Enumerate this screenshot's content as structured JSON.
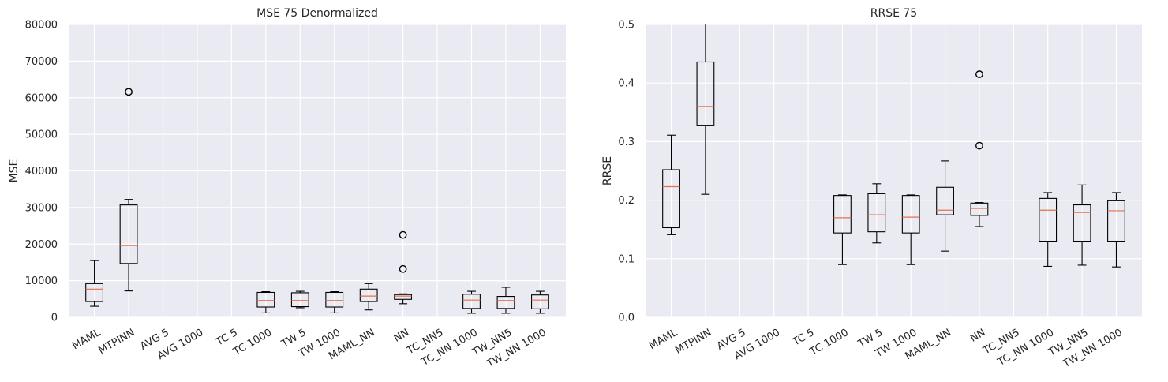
{
  "chart_data": [
    {
      "type": "box",
      "title": "MSE 75 Denormalized",
      "xlabel": "",
      "ylabel": "MSE",
      "ylim": [
        0,
        80000
      ],
      "yticks": [
        0,
        10000,
        20000,
        30000,
        40000,
        50000,
        60000,
        70000,
        80000
      ],
      "categories": [
        "MAML",
        "MTPINN",
        "AVG 5",
        "AVG 1000",
        "TC 5",
        "TC 1000",
        "TW 5",
        "TW 1000",
        "MAML_NN",
        "NN",
        "TC_NN5",
        "TC_NN 1000",
        "TW_NN5",
        "TW_NN 1000"
      ],
      "boxes": [
        {
          "whislo": 3000,
          "q1": 4300,
          "med": 7700,
          "q3": 9200,
          "whishi": 15500,
          "fliers": []
        },
        {
          "whislo": 7200,
          "q1": 14700,
          "med": 19600,
          "q3": 30700,
          "whishi": 32200,
          "fliers": [
            61600
          ]
        },
        null,
        null,
        null,
        {
          "whislo": 1200,
          "q1": 2800,
          "med": 4600,
          "q3": 6800,
          "whishi": 7000,
          "fliers": []
        },
        {
          "whislo": 2600,
          "q1": 2900,
          "med": 4600,
          "q3": 6700,
          "whishi": 7100,
          "fliers": []
        },
        {
          "whislo": 1200,
          "q1": 2800,
          "med": 4600,
          "q3": 6800,
          "whishi": 7000,
          "fliers": []
        },
        {
          "whislo": 2000,
          "q1": 4300,
          "med": 5800,
          "q3": 7700,
          "whishi": 9200,
          "fliers": []
        },
        {
          "whislo": 3700,
          "q1": 4900,
          "med": 5800,
          "q3": 6200,
          "whishi": 6400,
          "fliers": [
            13200,
            22500
          ]
        },
        null,
        {
          "whislo": 1100,
          "q1": 2400,
          "med": 4700,
          "q3": 6300,
          "whishi": 7100,
          "fliers": []
        },
        {
          "whislo": 1100,
          "q1": 2400,
          "med": 4600,
          "q3": 5700,
          "whishi": 8200,
          "fliers": []
        },
        {
          "whislo": 1100,
          "q1": 2300,
          "med": 4700,
          "q3": 6100,
          "whishi": 7100,
          "fliers": []
        }
      ],
      "grid": true,
      "background": "#eaeaf2",
      "box_color": "#000000",
      "median_color": "#e1724b"
    },
    {
      "type": "box",
      "title": "RRSE 75",
      "xlabel": "",
      "ylabel": "RRSE",
      "ylim": [
        0,
        0.5
      ],
      "yticks": [
        0.0,
        0.1,
        0.2,
        0.3,
        0.4,
        0.5
      ],
      "categories": [
        "MAML",
        "MTPINN",
        "AVG 5",
        "AVG 1000",
        "TC 5",
        "TC 1000",
        "TW 5",
        "TW 1000",
        "MAML_NN",
        "NN",
        "TC_NN5",
        "TC_NN 1000",
        "TW_NN5",
        "TW_NN 1000"
      ],
      "boxes": [
        {
          "whislo": 0.141,
          "q1": 0.153,
          "med": 0.223,
          "q3": 0.252,
          "whishi": 0.311,
          "fliers": []
        },
        {
          "whislo": 0.21,
          "q1": 0.327,
          "med": 0.36,
          "q3": 0.436,
          "whishi": 0.52,
          "fliers": []
        },
        null,
        null,
        null,
        {
          "whislo": 0.09,
          "q1": 0.144,
          "med": 0.17,
          "q3": 0.208,
          "whishi": 0.209,
          "fliers": []
        },
        {
          "whislo": 0.127,
          "q1": 0.146,
          "med": 0.175,
          "q3": 0.211,
          "whishi": 0.228,
          "fliers": []
        },
        {
          "whislo": 0.09,
          "q1": 0.144,
          "med": 0.171,
          "q3": 0.208,
          "whishi": 0.209,
          "fliers": []
        },
        {
          "whislo": 0.113,
          "q1": 0.175,
          "med": 0.183,
          "q3": 0.222,
          "whishi": 0.267,
          "fliers": []
        },
        {
          "whislo": 0.155,
          "q1": 0.174,
          "med": 0.186,
          "q3": 0.195,
          "whishi": 0.196,
          "fliers": [
            0.293,
            0.415
          ]
        },
        null,
        {
          "whislo": 0.087,
          "q1": 0.13,
          "med": 0.183,
          "q3": 0.203,
          "whishi": 0.213,
          "fliers": []
        },
        {
          "whislo": 0.089,
          "q1": 0.13,
          "med": 0.179,
          "q3": 0.192,
          "whishi": 0.226,
          "fliers": []
        },
        {
          "whislo": 0.086,
          "q1": 0.13,
          "med": 0.182,
          "q3": 0.199,
          "whishi": 0.213,
          "fliers": []
        }
      ],
      "grid": true,
      "background": "#eaeaf2",
      "box_color": "#000000",
      "median_color": "#e1724b"
    }
  ]
}
